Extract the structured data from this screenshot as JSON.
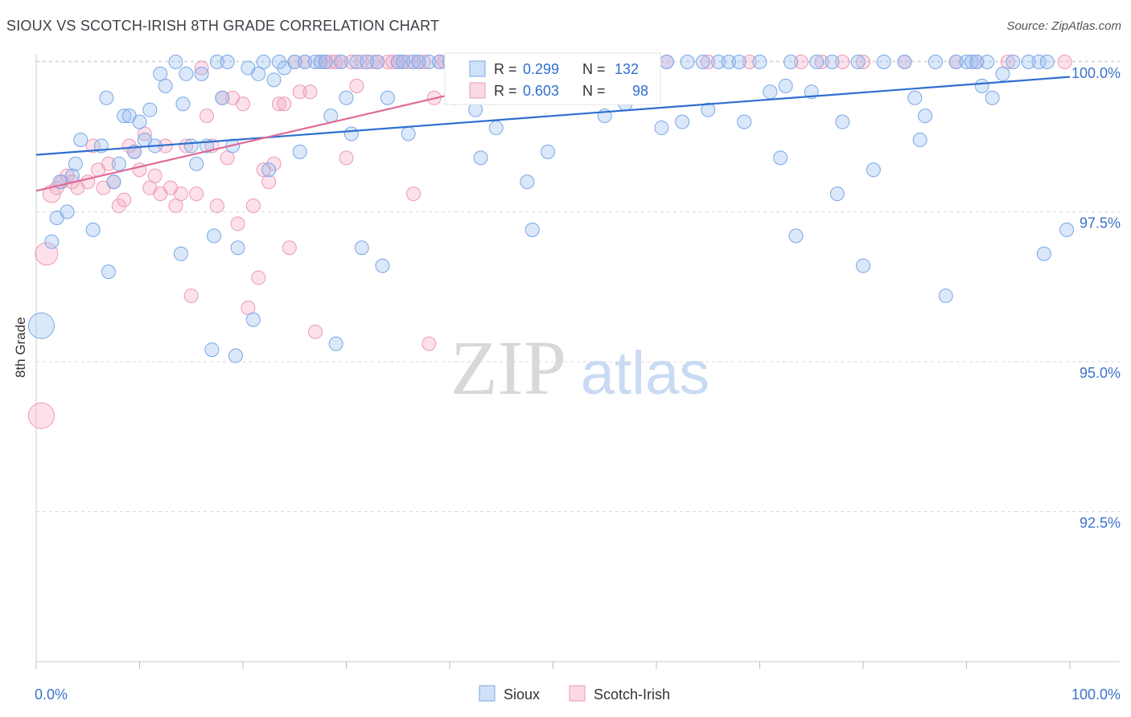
{
  "title": "SIOUX VS SCOTCH-IRISH 8TH GRADE CORRELATION CHART",
  "source": "Source: ZipAtlas.com",
  "watermark": {
    "zip": "ZIP",
    "atlas": "atlas"
  },
  "colors": {
    "sioux_fill": "rgba(150,190,240,0.35)",
    "sioux_stroke": "#7aa7e6",
    "sioux_line": "#2f6fd0",
    "scotch_fill": "rgba(245,170,195,0.35)",
    "scotch_stroke": "#eb9ab5",
    "scotch_line": "#e06a98",
    "tick_label": "#3d72c9",
    "grid": "#d9d9d9"
  },
  "legend_top": {
    "rows": [
      {
        "r_label": "R =",
        "r_value": "0.299",
        "n_label": "N =",
        "n_value": "132"
      },
      {
        "r_label": "R =",
        "r_value": "0.603",
        "n_label": "N =",
        "n_value": "98"
      }
    ]
  },
  "chart_data": {
    "type": "scatter",
    "title": "SIOUX VS SCOTCH-IRISH 8TH GRADE CORRELATION CHART",
    "xlabel": "",
    "ylabel": "8th Grade",
    "xlim": [
      0,
      100
    ],
    "ylim": [
      90.0,
      100.3
    ],
    "x_tick_labels": [
      "0.0%",
      "100.0%"
    ],
    "y_ticks": [
      92.5,
      95.0,
      97.5,
      100.0
    ],
    "y_tick_labels": [
      "92.5%",
      "95.0%",
      "97.5%",
      "100.0%"
    ],
    "grid": true,
    "legend_position": "bottom-center",
    "series": [
      {
        "name": "Sioux",
        "r": 0.299,
        "n": 132,
        "trend": [
          [
            0,
            98.45
          ],
          [
            100,
            99.75
          ]
        ],
        "points": [
          [
            0.5,
            95.6
          ],
          [
            1.5,
            97.0
          ],
          [
            2.0,
            97.4
          ],
          [
            2.3,
            98.0
          ],
          [
            3.0,
            97.5
          ],
          [
            3.5,
            98.1
          ],
          [
            3.8,
            98.3
          ],
          [
            4.3,
            98.7
          ],
          [
            5.5,
            97.2
          ],
          [
            6.3,
            98.6
          ],
          [
            6.8,
            99.4
          ],
          [
            7.0,
            96.5
          ],
          [
            7.5,
            98.0
          ],
          [
            8.0,
            98.3
          ],
          [
            8.5,
            99.1
          ],
          [
            9.0,
            99.1
          ],
          [
            9.5,
            98.5
          ],
          [
            10.0,
            99.0
          ],
          [
            10.5,
            98.7
          ],
          [
            11.0,
            99.2
          ],
          [
            11.5,
            98.6
          ],
          [
            12.0,
            99.8
          ],
          [
            12.5,
            99.6
          ],
          [
            13.5,
            100.0
          ],
          [
            14.0,
            96.8
          ],
          [
            14.2,
            99.3
          ],
          [
            14.5,
            99.8
          ],
          [
            15.0,
            98.6
          ],
          [
            15.5,
            98.3
          ],
          [
            16.0,
            99.8
          ],
          [
            16.5,
            98.6
          ],
          [
            17.0,
            95.2
          ],
          [
            17.2,
            97.1
          ],
          [
            17.5,
            100.0
          ],
          [
            18.0,
            99.4
          ],
          [
            18.5,
            100.0
          ],
          [
            19.0,
            98.6
          ],
          [
            19.3,
            95.1
          ],
          [
            19.5,
            96.9
          ],
          [
            20.5,
            99.9
          ],
          [
            21.0,
            95.7
          ],
          [
            21.5,
            99.8
          ],
          [
            22.0,
            100.0
          ],
          [
            22.5,
            98.2
          ],
          [
            23.0,
            99.7
          ],
          [
            23.5,
            100.0
          ],
          [
            24.0,
            99.9
          ],
          [
            25.0,
            100.0
          ],
          [
            25.5,
            98.5
          ],
          [
            26.0,
            100.0
          ],
          [
            27.0,
            100.0
          ],
          [
            27.5,
            100.0
          ],
          [
            28.0,
            100.0
          ],
          [
            28.5,
            99.1
          ],
          [
            29.0,
            95.3
          ],
          [
            29.5,
            100.0
          ],
          [
            30.0,
            99.4
          ],
          [
            30.5,
            98.8
          ],
          [
            31.0,
            100.0
          ],
          [
            31.5,
            96.9
          ],
          [
            32.0,
            100.0
          ],
          [
            33.0,
            100.0
          ],
          [
            33.5,
            96.6
          ],
          [
            34.0,
            99.4
          ],
          [
            35.0,
            100.0
          ],
          [
            35.5,
            100.0
          ],
          [
            36.0,
            98.8
          ],
          [
            36.5,
            100.0
          ],
          [
            37.0,
            100.0
          ],
          [
            38.0,
            100.0
          ],
          [
            39.0,
            100.0
          ],
          [
            40.0,
            100.0
          ],
          [
            40.5,
            99.4
          ],
          [
            41.0,
            100.0
          ],
          [
            42.0,
            100.0
          ],
          [
            42.5,
            99.2
          ],
          [
            43.0,
            98.4
          ],
          [
            44.0,
            99.4
          ],
          [
            44.5,
            98.9
          ],
          [
            45.0,
            100.0
          ],
          [
            47.0,
            100.0
          ],
          [
            47.5,
            98.0
          ],
          [
            48.0,
            97.2
          ],
          [
            49.0,
            100.0
          ],
          [
            49.5,
            98.5
          ],
          [
            52.0,
            100.0
          ],
          [
            54.0,
            100.0
          ],
          [
            55.0,
            99.1
          ],
          [
            56.0,
            100.0
          ],
          [
            57.0,
            99.3
          ],
          [
            58.5,
            100.0
          ],
          [
            60.5,
            98.9
          ],
          [
            61.0,
            100.0
          ],
          [
            62.5,
            99.0
          ],
          [
            63.0,
            100.0
          ],
          [
            64.5,
            100.0
          ],
          [
            65.0,
            99.2
          ],
          [
            66.0,
            100.0
          ],
          [
            67.0,
            100.0
          ],
          [
            68.0,
            100.0
          ],
          [
            68.5,
            99.0
          ],
          [
            70.0,
            100.0
          ],
          [
            71.0,
            99.5
          ],
          [
            72.0,
            98.4
          ],
          [
            72.5,
            99.6
          ],
          [
            73.0,
            100.0
          ],
          [
            73.5,
            97.1
          ],
          [
            75.0,
            99.5
          ],
          [
            75.5,
            100.0
          ],
          [
            77.0,
            100.0
          ],
          [
            77.5,
            97.8
          ],
          [
            78.0,
            99.0
          ],
          [
            79.5,
            100.0
          ],
          [
            80.0,
            96.6
          ],
          [
            81.0,
            98.2
          ],
          [
            82.0,
            100.0
          ],
          [
            84.0,
            100.0
          ],
          [
            85.0,
            99.4
          ],
          [
            85.5,
            98.7
          ],
          [
            86.0,
            99.1
          ],
          [
            87.0,
            100.0
          ],
          [
            88.0,
            96.1
          ],
          [
            89.0,
            100.0
          ],
          [
            90.0,
            100.0
          ],
          [
            90.5,
            100.0
          ],
          [
            91.0,
            100.0
          ],
          [
            91.5,
            99.6
          ],
          [
            92.0,
            100.0
          ],
          [
            92.5,
            99.4
          ],
          [
            93.5,
            99.8
          ],
          [
            94.5,
            100.0
          ],
          [
            96.0,
            100.0
          ],
          [
            97.0,
            100.0
          ],
          [
            97.5,
            96.8
          ],
          [
            97.8,
            100.0
          ],
          [
            99.7,
            97.2
          ]
        ]
      },
      {
        "name": "Scotch-Irish",
        "r": 0.603,
        "n": 98,
        "trend": [
          [
            0,
            97.85
          ],
          [
            55,
            100.05
          ]
        ],
        "points": [
          [
            0.5,
            94.1
          ],
          [
            1.0,
            96.8
          ],
          [
            1.5,
            97.8
          ],
          [
            2.0,
            97.9
          ],
          [
            2.5,
            98.0
          ],
          [
            3.0,
            98.1
          ],
          [
            3.5,
            98.0
          ],
          [
            4.0,
            97.9
          ],
          [
            5.0,
            98.0
          ],
          [
            5.5,
            98.6
          ],
          [
            6.0,
            98.2
          ],
          [
            6.5,
            97.9
          ],
          [
            7.0,
            98.3
          ],
          [
            7.5,
            98.0
          ],
          [
            8.0,
            97.6
          ],
          [
            8.5,
            97.7
          ],
          [
            9.0,
            98.6
          ],
          [
            9.5,
            98.5
          ],
          [
            10.0,
            98.2
          ],
          [
            10.5,
            98.8
          ],
          [
            11.0,
            97.9
          ],
          [
            11.5,
            98.1
          ],
          [
            12.0,
            97.8
          ],
          [
            12.5,
            98.6
          ],
          [
            13.0,
            97.9
          ],
          [
            13.5,
            97.6
          ],
          [
            14.0,
            97.8
          ],
          [
            14.5,
            98.6
          ],
          [
            15.0,
            96.1
          ],
          [
            15.5,
            97.8
          ],
          [
            16.0,
            99.9
          ],
          [
            16.5,
            99.1
          ],
          [
            17.0,
            98.6
          ],
          [
            17.5,
            97.6
          ],
          [
            18.0,
            99.4
          ],
          [
            18.5,
            98.4
          ],
          [
            19.0,
            99.4
          ],
          [
            19.5,
            97.3
          ],
          [
            20.0,
            99.3
          ],
          [
            20.5,
            95.9
          ],
          [
            21.0,
            97.6
          ],
          [
            21.5,
            96.4
          ],
          [
            22.0,
            98.2
          ],
          [
            22.5,
            98.0
          ],
          [
            23.0,
            98.3
          ],
          [
            23.5,
            99.3
          ],
          [
            24.0,
            99.3
          ],
          [
            24.5,
            96.9
          ],
          [
            25.0,
            100.0
          ],
          [
            25.5,
            99.5
          ],
          [
            26.0,
            100.0
          ],
          [
            26.5,
            99.5
          ],
          [
            27.0,
            95.5
          ],
          [
            27.5,
            100.0
          ],
          [
            28.0,
            100.0
          ],
          [
            28.5,
            100.0
          ],
          [
            29.0,
            100.0
          ],
          [
            29.5,
            100.0
          ],
          [
            30.0,
            98.4
          ],
          [
            30.5,
            100.0
          ],
          [
            31.0,
            99.6
          ],
          [
            31.5,
            100.0
          ],
          [
            32.5,
            100.0
          ],
          [
            33.0,
            100.0
          ],
          [
            34.0,
            100.0
          ],
          [
            34.5,
            100.0
          ],
          [
            35.0,
            100.0
          ],
          [
            35.5,
            100.0
          ],
          [
            36.0,
            100.0
          ],
          [
            36.5,
            97.8
          ],
          [
            37.0,
            100.0
          ],
          [
            37.5,
            100.0
          ],
          [
            38.0,
            95.3
          ],
          [
            38.5,
            99.4
          ],
          [
            39.0,
            100.0
          ],
          [
            39.5,
            100.0
          ],
          [
            40.0,
            100.0
          ],
          [
            41.0,
            100.0
          ],
          [
            42.0,
            100.0
          ],
          [
            43.0,
            100.0
          ],
          [
            44.0,
            100.0
          ],
          [
            45.0,
            100.0
          ],
          [
            46.0,
            100.0
          ],
          [
            47.0,
            100.0
          ],
          [
            52.0,
            100.0
          ],
          [
            58.0,
            100.0
          ],
          [
            61.0,
            100.0
          ],
          [
            65.0,
            100.0
          ],
          [
            69.0,
            100.0
          ],
          [
            74.0,
            100.0
          ],
          [
            76.0,
            100.0
          ],
          [
            78.0,
            100.0
          ],
          [
            80.0,
            100.0
          ],
          [
            84.0,
            100.0
          ],
          [
            89.0,
            100.0
          ],
          [
            91.0,
            100.0
          ],
          [
            94.0,
            100.0
          ],
          [
            99.5,
            100.0
          ]
        ]
      }
    ]
  }
}
